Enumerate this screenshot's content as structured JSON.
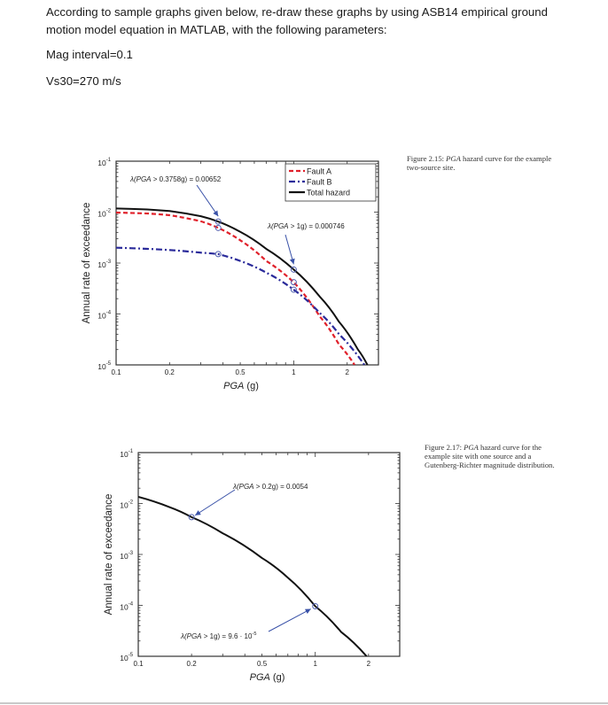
{
  "document": {
    "paragraphs": [
      "According to sample graphs given below, re-draw these graphs by using ASB14 empirical ground motion model equation in MATLAB, with the following parameters:",
      "Mag interval=0.1",
      "Vs30=270 m/s"
    ]
  },
  "figures": [
    {
      "caption_prefix": "Figure 2.15: ",
      "caption_italic": "PGA",
      "caption_rest": " hazard curve for the example two-source site."
    },
    {
      "caption_prefix": "Figure 2.17: ",
      "caption_italic": "PGA",
      "caption_rest": " hazard curve for the example site with one source and a Gutenberg-Richter magnitude distribution."
    }
  ],
  "chart_data": [
    {
      "type": "line",
      "title": "",
      "xlabel": "PGA (g)",
      "ylabel": "Annual rate of exceedance",
      "xscale": "log",
      "yscale": "log",
      "xlim": [
        0.1,
        3
      ],
      "ylim": [
        1e-05,
        0.1
      ],
      "xticks": [
        "0.1",
        "0.2",
        "0.5",
        "1",
        "2"
      ],
      "yticks": [
        "10^-1",
        "10^-2",
        "10^-3",
        "10^-4",
        "10^-5"
      ],
      "legend": {
        "position": "upper right",
        "entries": [
          "Fault A",
          "Fault B",
          "Total hazard"
        ]
      },
      "series": [
        {
          "name": "Fault A",
          "color": "#e0202a",
          "style": "dashed",
          "x": [
            0.1,
            0.15,
            0.2,
            0.3,
            0.3758,
            0.5,
            0.7,
            1.0,
            1.4,
            1.8,
            2.2
          ],
          "y": [
            0.0098,
            0.0094,
            0.0087,
            0.0066,
            0.0049,
            0.0028,
            0.0011,
            0.00042,
            9e-05,
            2.5e-05,
            1e-05
          ]
        },
        {
          "name": "Fault B",
          "color": "#2a2a9a",
          "style": "dash-dot",
          "x": [
            0.1,
            0.15,
            0.2,
            0.3,
            0.3758,
            0.5,
            0.7,
            1.0,
            1.4,
            1.8,
            2.5
          ],
          "y": [
            0.002,
            0.0019,
            0.0018,
            0.0016,
            0.0015,
            0.0011,
            0.00065,
            0.0003,
            0.000105,
            4e-05,
            1e-05
          ]
        },
        {
          "name": "Total hazard",
          "color": "#111111",
          "style": "solid",
          "x": [
            0.1,
            0.15,
            0.2,
            0.3,
            0.3758,
            0.5,
            0.7,
            1.0,
            1.4,
            1.8,
            2.3,
            2.6
          ],
          "y": [
            0.0118,
            0.0113,
            0.0105,
            0.0083,
            0.00652,
            0.0041,
            0.0019,
            0.000746,
            0.00022,
            7e-05,
            2e-05,
            1e-05
          ]
        }
      ],
      "annotations": [
        {
          "text": "λ(PGA > 0.3758g) = 0.00652",
          "x": 0.3758,
          "y": 0.00652
        },
        {
          "text": "λ(PGA > 1g) = 0.000746",
          "x": 1.0,
          "y": 0.000746
        }
      ]
    },
    {
      "type": "line",
      "title": "",
      "xlabel": "PGA (g)",
      "ylabel": "Annual rate of exceedance",
      "xscale": "log",
      "yscale": "log",
      "xlim": [
        0.1,
        3
      ],
      "ylim": [
        1e-05,
        0.1
      ],
      "xticks": [
        "0.1",
        "0.2",
        "0.5",
        "1",
        "2"
      ],
      "yticks": [
        "10^-1",
        "10^-2",
        "10^-3",
        "10^-4",
        "10^-5"
      ],
      "series": [
        {
          "name": "Hazard curve",
          "color": "#111111",
          "style": "solid",
          "x": [
            0.1,
            0.15,
            0.2,
            0.3,
            0.5,
            0.7,
            1.0,
            1.4,
            1.95
          ],
          "y": [
            0.0135,
            0.0085,
            0.0054,
            0.0026,
            0.00085,
            0.00035,
            9.6e-05,
            3e-05,
            1e-05
          ]
        }
      ],
      "annotations": [
        {
          "text": "λ(PGA > 0.2g) = 0.0054",
          "x": 0.2,
          "y": 0.0054
        },
        {
          "text": "λ(PGA > 1g) = 9.6 · 10^-5",
          "x": 1.0,
          "y": 9.6e-05
        }
      ]
    }
  ]
}
